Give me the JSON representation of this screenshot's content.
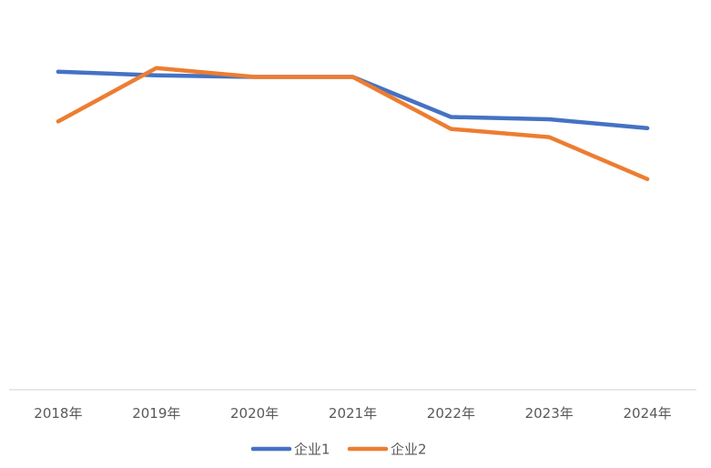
{
  "chart_data": {
    "type": "line",
    "title": "",
    "xlabel": "",
    "ylabel": "",
    "categories": [
      "2018年",
      "2019年",
      "2020年",
      "2021年",
      "2022年",
      "2023年",
      "2024年"
    ],
    "series": [
      {
        "name": "企业1",
        "color": "#4472C4",
        "values": [
          85.6,
          84.6,
          84.2,
          84.2,
          73.4,
          72.8,
          70.4
        ]
      },
      {
        "name": "企业2",
        "color": "#ED7D31",
        "values": [
          72.2,
          86.6,
          84.2,
          84.2,
          70.2,
          68.0,
          56.7
        ]
      }
    ],
    "ylim": [
      0,
      100
    ],
    "grid": false,
    "y_axis_visible": false,
    "legend_position": "bottom"
  }
}
